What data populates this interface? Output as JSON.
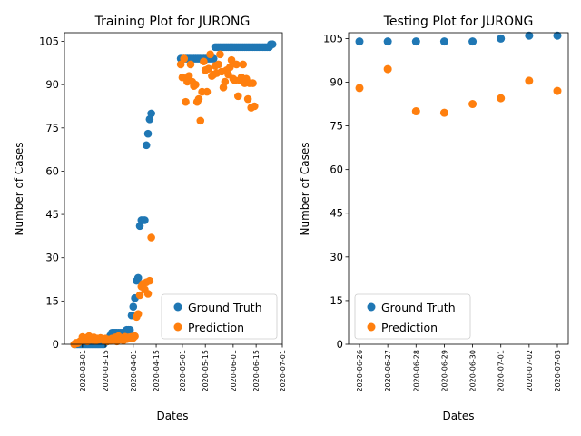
{
  "colors": {
    "ground_truth": "#1f77b4",
    "prediction": "#ff7f0e"
  },
  "chart_data": [
    {
      "type": "scatter",
      "title": "Training Plot for JURONG",
      "xlabel": "Dates",
      "ylabel": "Number of Cases",
      "xlim": [
        "2020-02-19",
        "2020-07-01"
      ],
      "ylim": [
        0,
        108
      ],
      "x_ticks": [
        "2020-03-01",
        "2020-03-15",
        "2020-04-01",
        "2020-04-15",
        "2020-05-01",
        "2020-05-15",
        "2020-06-01",
        "2020-06-15",
        "2020-07-01"
      ],
      "y_ticks": [
        "0",
        "15",
        "30",
        "45",
        "60",
        "75",
        "90",
        "105"
      ],
      "legend": {
        "position": "lower-right",
        "entries": [
          "Ground Truth",
          "Prediction"
        ]
      },
      "series": [
        {
          "name": "Ground Truth",
          "points": [
            [
              "2020-02-25",
              0
            ],
            [
              "2020-02-26",
              0
            ],
            [
              "2020-02-27",
              0
            ],
            [
              "2020-02-28",
              0
            ],
            [
              "2020-02-29",
              0
            ],
            [
              "2020-03-01",
              0
            ],
            [
              "2020-03-02",
              0
            ],
            [
              "2020-03-03",
              0
            ],
            [
              "2020-03-04",
              0
            ],
            [
              "2020-03-05",
              0
            ],
            [
              "2020-03-06",
              0
            ],
            [
              "2020-03-07",
              0
            ],
            [
              "2020-03-08",
              0
            ],
            [
              "2020-03-09",
              0
            ],
            [
              "2020-03-10",
              0
            ],
            [
              "2020-03-11",
              0
            ],
            [
              "2020-03-12",
              0
            ],
            [
              "2020-03-13",
              0
            ],
            [
              "2020-03-14",
              0
            ],
            [
              "2020-03-15",
              1
            ],
            [
              "2020-03-16",
              1
            ],
            [
              "2020-03-17",
              2
            ],
            [
              "2020-03-18",
              3
            ],
            [
              "2020-03-19",
              4
            ],
            [
              "2020-03-20",
              4
            ],
            [
              "2020-03-21",
              4
            ],
            [
              "2020-03-22",
              4
            ],
            [
              "2020-03-23",
              4
            ],
            [
              "2020-03-24",
              4
            ],
            [
              "2020-03-25",
              4
            ],
            [
              "2020-03-26",
              4
            ],
            [
              "2020-03-27",
              4
            ],
            [
              "2020-03-28",
              5
            ],
            [
              "2020-03-29",
              5
            ],
            [
              "2020-03-30",
              5
            ],
            [
              "2020-03-31",
              10
            ],
            [
              "2020-04-01",
              13
            ],
            [
              "2020-04-02",
              16
            ],
            [
              "2020-04-03",
              22
            ],
            [
              "2020-04-04",
              23
            ],
            [
              "2020-04-05",
              41
            ],
            [
              "2020-04-06",
              43
            ],
            [
              "2020-04-07",
              43
            ],
            [
              "2020-04-08",
              43
            ],
            [
              "2020-04-09",
              69
            ],
            [
              "2020-04-10",
              73
            ],
            [
              "2020-04-11",
              78
            ],
            [
              "2020-04-12",
              80
            ],
            [
              "2020-04-30",
              99
            ],
            [
              "2020-05-01",
              99
            ],
            [
              "2020-05-02",
              99
            ],
            [
              "2020-05-03",
              99
            ],
            [
              "2020-05-04",
              99
            ],
            [
              "2020-05-05",
              99
            ],
            [
              "2020-05-06",
              99
            ],
            [
              "2020-05-07",
              99
            ],
            [
              "2020-05-08",
              99
            ],
            [
              "2020-05-09",
              99
            ],
            [
              "2020-05-10",
              99
            ],
            [
              "2020-05-11",
              99
            ],
            [
              "2020-05-12",
              99
            ],
            [
              "2020-05-13",
              99
            ],
            [
              "2020-05-14",
              99
            ],
            [
              "2020-05-15",
              99
            ],
            [
              "2020-05-16",
              99
            ],
            [
              "2020-05-17",
              99
            ],
            [
              "2020-05-18",
              99
            ],
            [
              "2020-05-19",
              99
            ],
            [
              "2020-05-20",
              99
            ],
            [
              "2020-05-21",
              103
            ],
            [
              "2020-05-22",
              103
            ],
            [
              "2020-05-23",
              103
            ],
            [
              "2020-05-24",
              103
            ],
            [
              "2020-05-25",
              103
            ],
            [
              "2020-05-26",
              103
            ],
            [
              "2020-05-27",
              103
            ],
            [
              "2020-05-28",
              103
            ],
            [
              "2020-05-29",
              103
            ],
            [
              "2020-05-30",
              103
            ],
            [
              "2020-05-31",
              103
            ],
            [
              "2020-06-01",
              103
            ],
            [
              "2020-06-02",
              103
            ],
            [
              "2020-06-03",
              103
            ],
            [
              "2020-06-04",
              103
            ],
            [
              "2020-06-05",
              103
            ],
            [
              "2020-06-06",
              103
            ],
            [
              "2020-06-07",
              103
            ],
            [
              "2020-06-08",
              103
            ],
            [
              "2020-06-09",
              103
            ],
            [
              "2020-06-10",
              103
            ],
            [
              "2020-06-11",
              103
            ],
            [
              "2020-06-12",
              103
            ],
            [
              "2020-06-13",
              103
            ],
            [
              "2020-06-14",
              103
            ],
            [
              "2020-06-15",
              103
            ],
            [
              "2020-06-16",
              103
            ],
            [
              "2020-06-17",
              103
            ],
            [
              "2020-06-18",
              103
            ],
            [
              "2020-06-19",
              103
            ],
            [
              "2020-06-20",
              103
            ],
            [
              "2020-06-21",
              103
            ],
            [
              "2020-06-22",
              103
            ],
            [
              "2020-06-23",
              103
            ],
            [
              "2020-06-24",
              104
            ],
            [
              "2020-06-25",
              104
            ]
          ]
        },
        {
          "name": "Prediction",
          "points": [
            [
              "2020-02-25",
              0
            ],
            [
              "2020-02-26",
              0.5
            ],
            [
              "2020-02-27",
              0.4
            ],
            [
              "2020-02-28",
              0.8
            ],
            [
              "2020-02-29",
              1.2
            ],
            [
              "2020-03-01",
              2.5
            ],
            [
              "2020-03-02",
              1.8
            ],
            [
              "2020-03-03",
              2.2
            ],
            [
              "2020-03-04",
              1.0
            ],
            [
              "2020-03-05",
              2.8
            ],
            [
              "2020-03-06",
              2.0
            ],
            [
              "2020-03-07",
              1.5
            ],
            [
              "2020-03-08",
              2.4
            ],
            [
              "2020-03-09",
              1.2
            ],
            [
              "2020-03-10",
              2.0
            ],
            [
              "2020-03-11",
              1.6
            ],
            [
              "2020-03-12",
              2.2
            ],
            [
              "2020-03-13",
              1.8
            ],
            [
              "2020-03-14",
              1.4
            ],
            [
              "2020-03-15",
              2.0
            ],
            [
              "2020-03-16",
              1.0
            ],
            [
              "2020-03-17",
              1.6
            ],
            [
              "2020-03-18",
              1.2
            ],
            [
              "2020-03-19",
              2.0
            ],
            [
              "2020-03-20",
              1.5
            ],
            [
              "2020-03-21",
              2.4
            ],
            [
              "2020-03-22",
              1.0
            ],
            [
              "2020-03-23",
              2.8
            ],
            [
              "2020-03-24",
              1.6
            ],
            [
              "2020-03-25",
              2.2
            ],
            [
              "2020-03-26",
              1.3
            ],
            [
              "2020-03-27",
              2.6
            ],
            [
              "2020-03-28",
              1.8
            ],
            [
              "2020-03-29",
              2.4
            ],
            [
              "2020-03-30",
              2.0
            ],
            [
              "2020-03-31",
              2.6
            ],
            [
              "2020-04-01",
              2.2
            ],
            [
              "2020-04-02",
              2.8
            ],
            [
              "2020-04-03",
              9.5
            ],
            [
              "2020-04-04",
              10.5
            ],
            [
              "2020-04-05",
              17
            ],
            [
              "2020-04-06",
              20
            ],
            [
              "2020-04-07",
              21
            ],
            [
              "2020-04-08",
              19
            ],
            [
              "2020-04-09",
              21.5
            ],
            [
              "2020-04-10",
              17.5
            ],
            [
              "2020-04-11",
              22
            ],
            [
              "2020-04-12",
              37
            ],
            [
              "2020-04-30",
              97
            ],
            [
              "2020-05-01",
              92.5
            ],
            [
              "2020-05-02",
              99
            ],
            [
              "2020-05-03",
              84
            ],
            [
              "2020-05-04",
              91
            ],
            [
              "2020-05-05",
              93
            ],
            [
              "2020-05-06",
              97
            ],
            [
              "2020-05-07",
              91
            ],
            [
              "2020-05-08",
              89.5
            ],
            [
              "2020-05-09",
              90
            ],
            [
              "2020-05-10",
              84
            ],
            [
              "2020-05-11",
              85
            ],
            [
              "2020-05-12",
              77.5
            ],
            [
              "2020-05-13",
              87.5
            ],
            [
              "2020-05-14",
              98
            ],
            [
              "2020-05-15",
              95
            ],
            [
              "2020-05-16",
              87.5
            ],
            [
              "2020-05-17",
              95.5
            ],
            [
              "2020-05-18",
              100.5
            ],
            [
              "2020-05-19",
              93
            ],
            [
              "2020-05-20",
              93.5
            ],
            [
              "2020-05-21",
              96.5
            ],
            [
              "2020-05-22",
              94
            ],
            [
              "2020-05-23",
              97
            ],
            [
              "2020-05-24",
              100.5
            ],
            [
              "2020-05-25",
              94.5
            ],
            [
              "2020-05-26",
              89
            ],
            [
              "2020-05-27",
              91
            ],
            [
              "2020-05-28",
              95
            ],
            [
              "2020-05-29",
              93.5
            ],
            [
              "2020-05-30",
              96
            ],
            [
              "2020-05-31",
              98.5
            ],
            [
              "2020-06-01",
              92
            ],
            [
              "2020-06-02",
              91.5
            ],
            [
              "2020-06-03",
              97
            ],
            [
              "2020-06-04",
              86
            ],
            [
              "2020-06-05",
              91.5
            ],
            [
              "2020-06-06",
              92.5
            ],
            [
              "2020-06-07",
              97
            ],
            [
              "2020-06-08",
              90.5
            ],
            [
              "2020-06-09",
              92
            ],
            [
              "2020-06-10",
              85
            ],
            [
              "2020-06-11",
              90.5
            ],
            [
              "2020-06-12",
              82
            ],
            [
              "2020-06-13",
              90.5
            ],
            [
              "2020-06-14",
              82.5
            ]
          ]
        }
      ]
    },
    {
      "type": "scatter",
      "title": "Testing Plot for JURONG",
      "xlabel": "Dates",
      "ylabel": "Number of Cases",
      "ylim": [
        0,
        107
      ],
      "categories": [
        "2020-06-26",
        "2020-06-27",
        "2020-06-28",
        "2020-06-29",
        "2020-06-30",
        "2020-07-01",
        "2020-07-02",
        "2020-07-03"
      ],
      "y_ticks": [
        "0",
        "15",
        "30",
        "45",
        "60",
        "75",
        "90",
        "105"
      ],
      "legend": {
        "position": "lower-left",
        "entries": [
          "Ground Truth",
          "Prediction"
        ]
      },
      "series": [
        {
          "name": "Ground Truth",
          "values": [
            104,
            104,
            104,
            104,
            104,
            105,
            106,
            106
          ]
        },
        {
          "name": "Prediction",
          "values": [
            88,
            94.5,
            80,
            79.5,
            82.5,
            84.5,
            90.5,
            87
          ]
        }
      ]
    }
  ]
}
